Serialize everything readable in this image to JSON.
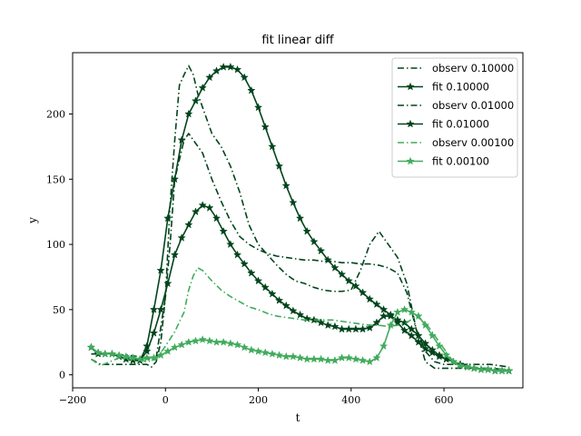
{
  "chart_data": {
    "type": "line",
    "title": "fit linear diff",
    "xlabel": "t",
    "ylabel": "y",
    "xlim": [
      -200,
      770
    ],
    "ylim": [
      -10,
      247
    ],
    "xticks": [
      -200,
      0,
      200,
      400,
      600
    ],
    "xtick_labels": [
      "−200",
      "0",
      "200",
      "400",
      "600"
    ],
    "yticks": [
      0,
      50,
      100,
      150,
      200
    ],
    "ytick_labels": [
      "0",
      "50",
      "100",
      "150",
      "200"
    ],
    "grid": false,
    "legend_position": "top-right",
    "series": [
      {
        "name": "observ 0.10000",
        "style": "dashdot",
        "marker": "none",
        "color": "#00441b",
        "x": [
          -160,
          -140,
          -120,
          -100,
          -80,
          -60,
          -40,
          -30,
          -20,
          -10,
          0,
          10,
          20,
          30,
          40,
          50,
          60,
          70,
          80,
          90,
          100,
          120,
          140,
          160,
          180,
          200,
          220,
          240,
          260,
          280,
          300,
          320,
          340,
          360,
          380,
          400,
          420,
          440,
          460,
          480,
          490,
          500,
          520,
          540,
          560,
          580,
          600,
          620,
          660,
          700,
          740
        ],
        "y": [
          12,
          8,
          8,
          8,
          8,
          8,
          8,
          6,
          10,
          25,
          60,
          130,
          180,
          222,
          230,
          237,
          230,
          215,
          205,
          195,
          185,
          175,
          160,
          140,
          115,
          100,
          92,
          84,
          77,
          72,
          70,
          67,
          65,
          64,
          64,
          65,
          80,
          100,
          110,
          100,
          95,
          90,
          70,
          35,
          10,
          5,
          5,
          5,
          5,
          5,
          4
        ]
      },
      {
        "name": "fit 0.10000",
        "style": "solid",
        "marker": "star",
        "color": "#00441b",
        "x": [
          -160,
          -145,
          -130,
          -115,
          -100,
          -85,
          -70,
          -55,
          -40,
          -25,
          -10,
          5,
          20,
          35,
          50,
          65,
          80,
          95,
          110,
          125,
          140,
          155,
          170,
          185,
          200,
          215,
          230,
          245,
          260,
          275,
          290,
          305,
          320,
          335,
          350,
          365,
          380,
          395,
          410,
          425,
          440,
          455,
          470,
          485,
          500,
          515,
          530,
          545,
          560,
          575,
          590,
          605,
          620,
          635,
          650,
          665,
          680,
          695,
          710,
          725,
          740
        ],
        "y": [
          21,
          16,
          16,
          16,
          14,
          12,
          11,
          11,
          22,
          50,
          80,
          120,
          150,
          180,
          200,
          210,
          220,
          228,
          233,
          236,
          236,
          234,
          228,
          218,
          205,
          190,
          175,
          160,
          145,
          132,
          120,
          110,
          102,
          95,
          88,
          82,
          77,
          72,
          68,
          63,
          58,
          54,
          50,
          46,
          40,
          34,
          30,
          25,
          20,
          17,
          14,
          12,
          10,
          8,
          6,
          5,
          4,
          4,
          3,
          3,
          3
        ]
      },
      {
        "name": "observ 0.01000",
        "style": "dashdot",
        "marker": "none",
        "color": "#00441b",
        "x": [
          -160,
          -140,
          -120,
          -100,
          -80,
          -60,
          -40,
          -20,
          0,
          10,
          20,
          30,
          40,
          50,
          60,
          70,
          80,
          90,
          100,
          120,
          140,
          160,
          180,
          200,
          220,
          240,
          260,
          280,
          300,
          320,
          340,
          360,
          380,
          400,
          420,
          440,
          460,
          480,
          500,
          520,
          540,
          560,
          580,
          600,
          620,
          660,
          700,
          740
        ],
        "y": [
          16,
          16,
          16,
          15,
          15,
          14,
          12,
          13,
          60,
          100,
          150,
          165,
          180,
          185,
          180,
          175,
          170,
          160,
          150,
          133,
          118,
          106,
          100,
          96,
          93,
          91,
          90,
          89,
          88,
          88,
          87,
          87,
          86,
          86,
          85,
          85,
          84,
          82,
          78,
          63,
          35,
          18,
          10,
          8,
          8,
          8,
          8,
          6
        ]
      },
      {
        "name": "fit 0.01000",
        "style": "solid",
        "marker": "star",
        "color": "#00441b",
        "x": [
          -160,
          -145,
          -130,
          -115,
          -100,
          -85,
          -70,
          -55,
          -40,
          -25,
          -10,
          5,
          20,
          35,
          50,
          65,
          80,
          95,
          110,
          125,
          140,
          155,
          170,
          185,
          200,
          215,
          230,
          245,
          260,
          275,
          290,
          305,
          320,
          335,
          350,
          365,
          380,
          395,
          410,
          425,
          440,
          455,
          470,
          485,
          500,
          515,
          530,
          545,
          560,
          575,
          590,
          605,
          620,
          635,
          650,
          665,
          680,
          695,
          710,
          725,
          740
        ],
        "y": [
          21,
          17,
          16,
          16,
          14,
          12,
          11,
          11,
          18,
          32,
          50,
          70,
          92,
          105,
          115,
          125,
          130,
          128,
          120,
          110,
          100,
          92,
          85,
          78,
          72,
          67,
          62,
          57,
          53,
          49,
          46,
          43,
          42,
          40,
          38,
          37,
          35,
          35,
          35,
          35,
          36,
          40,
          45,
          45,
          42,
          40,
          35,
          30,
          24,
          19,
          15,
          12,
          10,
          8,
          6,
          5,
          4,
          4,
          3,
          3,
          3
        ]
      },
      {
        "name": "observ 0.00100",
        "style": "dashdot",
        "marker": "none",
        "color": "#41ab5d",
        "x": [
          -160,
          -140,
          -120,
          -100,
          -80,
          -60,
          -40,
          -20,
          0,
          20,
          40,
          50,
          60,
          70,
          80,
          100,
          120,
          140,
          160,
          180,
          200,
          220,
          240,
          260,
          280,
          300,
          320,
          340,
          360,
          380,
          400,
          420,
          440,
          460,
          480,
          500,
          520,
          540,
          560,
          580,
          600,
          620,
          660,
          700,
          740
        ],
        "y": [
          12,
          7,
          10,
          13,
          12,
          12,
          10,
          12,
          22,
          33,
          48,
          65,
          76,
          82,
          80,
          72,
          65,
          60,
          56,
          52,
          50,
          47,
          45,
          44,
          43,
          42,
          42,
          42,
          42,
          41,
          40,
          39,
          38,
          38,
          37,
          38,
          40,
          45,
          40,
          30,
          20,
          10,
          5,
          5,
          4
        ]
      },
      {
        "name": "fit 0.00100",
        "style": "solid",
        "marker": "star",
        "color": "#41ab5d",
        "x": [
          -160,
          -145,
          -130,
          -115,
          -100,
          -85,
          -70,
          -55,
          -40,
          -25,
          -10,
          5,
          20,
          35,
          50,
          65,
          80,
          95,
          110,
          125,
          140,
          155,
          170,
          185,
          200,
          215,
          230,
          245,
          260,
          275,
          290,
          305,
          320,
          335,
          350,
          365,
          380,
          395,
          410,
          425,
          440,
          455,
          470,
          485,
          500,
          515,
          530,
          545,
          560,
          575,
          590,
          605,
          620,
          635,
          650,
          665,
          680,
          695,
          710,
          725,
          740
        ],
        "y": [
          21,
          17,
          16,
          16,
          15,
          14,
          13,
          12,
          13,
          13,
          15,
          18,
          21,
          23,
          25,
          26,
          27,
          26,
          25,
          25,
          24,
          23,
          21,
          19,
          18,
          17,
          16,
          15,
          14,
          14,
          13,
          12,
          12,
          12,
          11,
          11,
          13,
          13,
          12,
          11,
          10,
          13,
          22,
          38,
          48,
          50,
          48,
          45,
          38,
          30,
          22,
          15,
          10,
          7,
          6,
          5,
          4,
          4,
          3,
          3,
          3
        ]
      }
    ]
  }
}
